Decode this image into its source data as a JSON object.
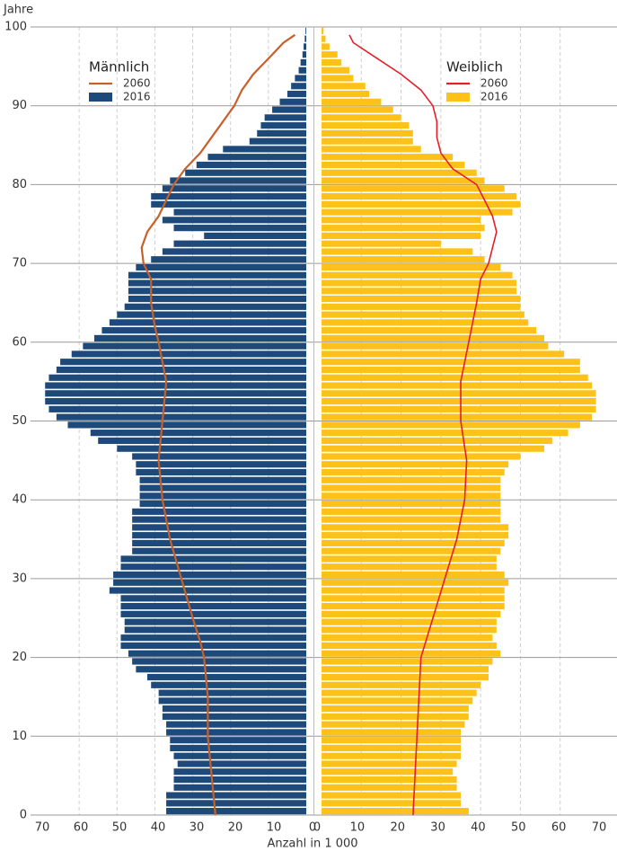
{
  "chart_data": {
    "type": "population-pyramid",
    "y_label": "Jahre",
    "x_label": "Anzahl in 1 000",
    "ylim": [
      0,
      100
    ],
    "yticks": [
      0,
      10,
      20,
      30,
      40,
      50,
      60,
      70,
      80,
      90,
      100
    ],
    "xlim": [
      0,
      70
    ],
    "xticks": [
      0,
      10,
      20,
      30,
      40,
      50,
      60,
      70
    ],
    "grid": true,
    "categories": [
      0,
      1,
      2,
      3,
      4,
      5,
      6,
      7,
      8,
      9,
      10,
      11,
      12,
      13,
      14,
      15,
      16,
      17,
      18,
      19,
      20,
      21,
      22,
      23,
      24,
      25,
      26,
      27,
      28,
      29,
      30,
      31,
      32,
      33,
      34,
      35,
      36,
      37,
      38,
      39,
      40,
      41,
      42,
      43,
      44,
      45,
      46,
      47,
      48,
      49,
      50,
      51,
      52,
      53,
      54,
      55,
      56,
      57,
      58,
      59,
      60,
      61,
      62,
      63,
      64,
      65,
      66,
      67,
      68,
      69,
      70,
      71,
      72,
      73,
      74,
      75,
      76,
      77,
      78,
      79,
      80,
      81,
      82,
      83,
      84,
      85,
      86,
      87,
      88,
      89,
      90,
      91,
      92,
      93,
      94,
      95,
      96,
      97,
      98,
      99
    ],
    "panels": [
      {
        "name": "Männlich",
        "side": "left",
        "series": [
          {
            "name": "2060",
            "type": "line",
            "color": "#c8602a",
            "ages": [
              0,
              5,
              10,
              15,
              20,
              22,
              25,
              30,
              35,
              40,
              45,
              50,
              55,
              60,
              62,
              65,
              68,
              70,
              72,
              74,
              76,
              78,
              80,
              82,
              84,
              86,
              88,
              90,
              92,
              94,
              96,
              98,
              99
            ],
            "values": [
              24,
              25,
              26,
              26,
              27,
              28,
              30,
              33,
              36,
              38,
              39,
              38,
              37,
              39,
              40,
              41,
              41,
              43,
              43.5,
              42,
              39,
              37,
              35,
              32,
              28,
              25,
              22,
              19,
              17,
              14,
              10,
              6,
              3
            ]
          },
          {
            "name": "2016",
            "type": "bar",
            "color": "#1d4a7a",
            "values": [
              37,
              37,
              37,
              35,
              35,
              35,
              34,
              35,
              36,
              36,
              37,
              37,
              38,
              38,
              39,
              39,
              41,
              42,
              45,
              46,
              47,
              49,
              49,
              48,
              48,
              49,
              49,
              49,
              52,
              51,
              51,
              49,
              49,
              46,
              46,
              46,
              46,
              46,
              46,
              44,
              44,
              44,
              44,
              45,
              45,
              46,
              50,
              55,
              57,
              63,
              66,
              68,
              69,
              69,
              69,
              68,
              66,
              65,
              62,
              59,
              56,
              54,
              52,
              50,
              48,
              47,
              47,
              47,
              47,
              45,
              41,
              38,
              35,
              27,
              35,
              38,
              35,
              41,
              41,
              38,
              36,
              32,
              29,
              26,
              22,
              15,
              13,
              12,
              11,
              9,
              7,
              5,
              4,
              3,
              2,
              1.5,
              1,
              0.7,
              0.4,
              0.2
            ]
          }
        ]
      },
      {
        "name": "Weiblich",
        "side": "right",
        "series": [
          {
            "name": "2060",
            "type": "line",
            "color": "#e3202a",
            "ages": [
              0,
              5,
              10,
              15,
              20,
              25,
              30,
              35,
              40,
              45,
              50,
              55,
              60,
              65,
              68,
              70,
              72,
              74,
              76,
              78,
              80,
              82,
              84,
              86,
              88,
              90,
              92,
              94,
              96,
              98,
              99
            ],
            "values": [
              23,
              23.5,
              24,
              24.5,
              25,
              28,
              31,
              34,
              36,
              36.5,
              35,
              35,
              37,
              39,
              40,
              42,
              43,
              44,
              43,
              41,
              39,
              33,
              30,
              29,
              29,
              28,
              25,
              20,
              14,
              8,
              7
            ]
          },
          {
            "name": "2016",
            "type": "bar",
            "color": "#fcc219",
            "values": [
              37,
              35,
              35,
              34,
              34,
              33,
              34,
              35,
              35,
              35,
              35,
              36,
              37,
              37,
              38,
              39,
              40,
              42,
              42,
              43,
              45,
              44,
              43,
              44,
              44,
              45,
              46,
              46,
              46,
              47,
              46,
              44,
              44,
              45,
              46,
              47,
              47,
              45,
              45,
              45,
              45,
              45,
              45,
              46,
              47,
              50,
              56,
              58,
              62,
              65,
              68,
              69,
              69,
              69,
              68,
              67,
              65,
              65,
              61,
              57,
              56,
              54,
              52,
              51,
              50,
              50,
              49,
              49,
              48,
              45,
              41,
              38,
              30,
              40,
              41,
              40,
              48,
              50,
              49,
              46,
              41,
              39,
              36,
              33,
              25,
              23,
              23,
              22,
              20,
              18,
              15,
              12,
              11,
              8,
              7,
              5,
              4,
              2,
              1,
              0.5
            ]
          }
        ]
      }
    ]
  }
}
